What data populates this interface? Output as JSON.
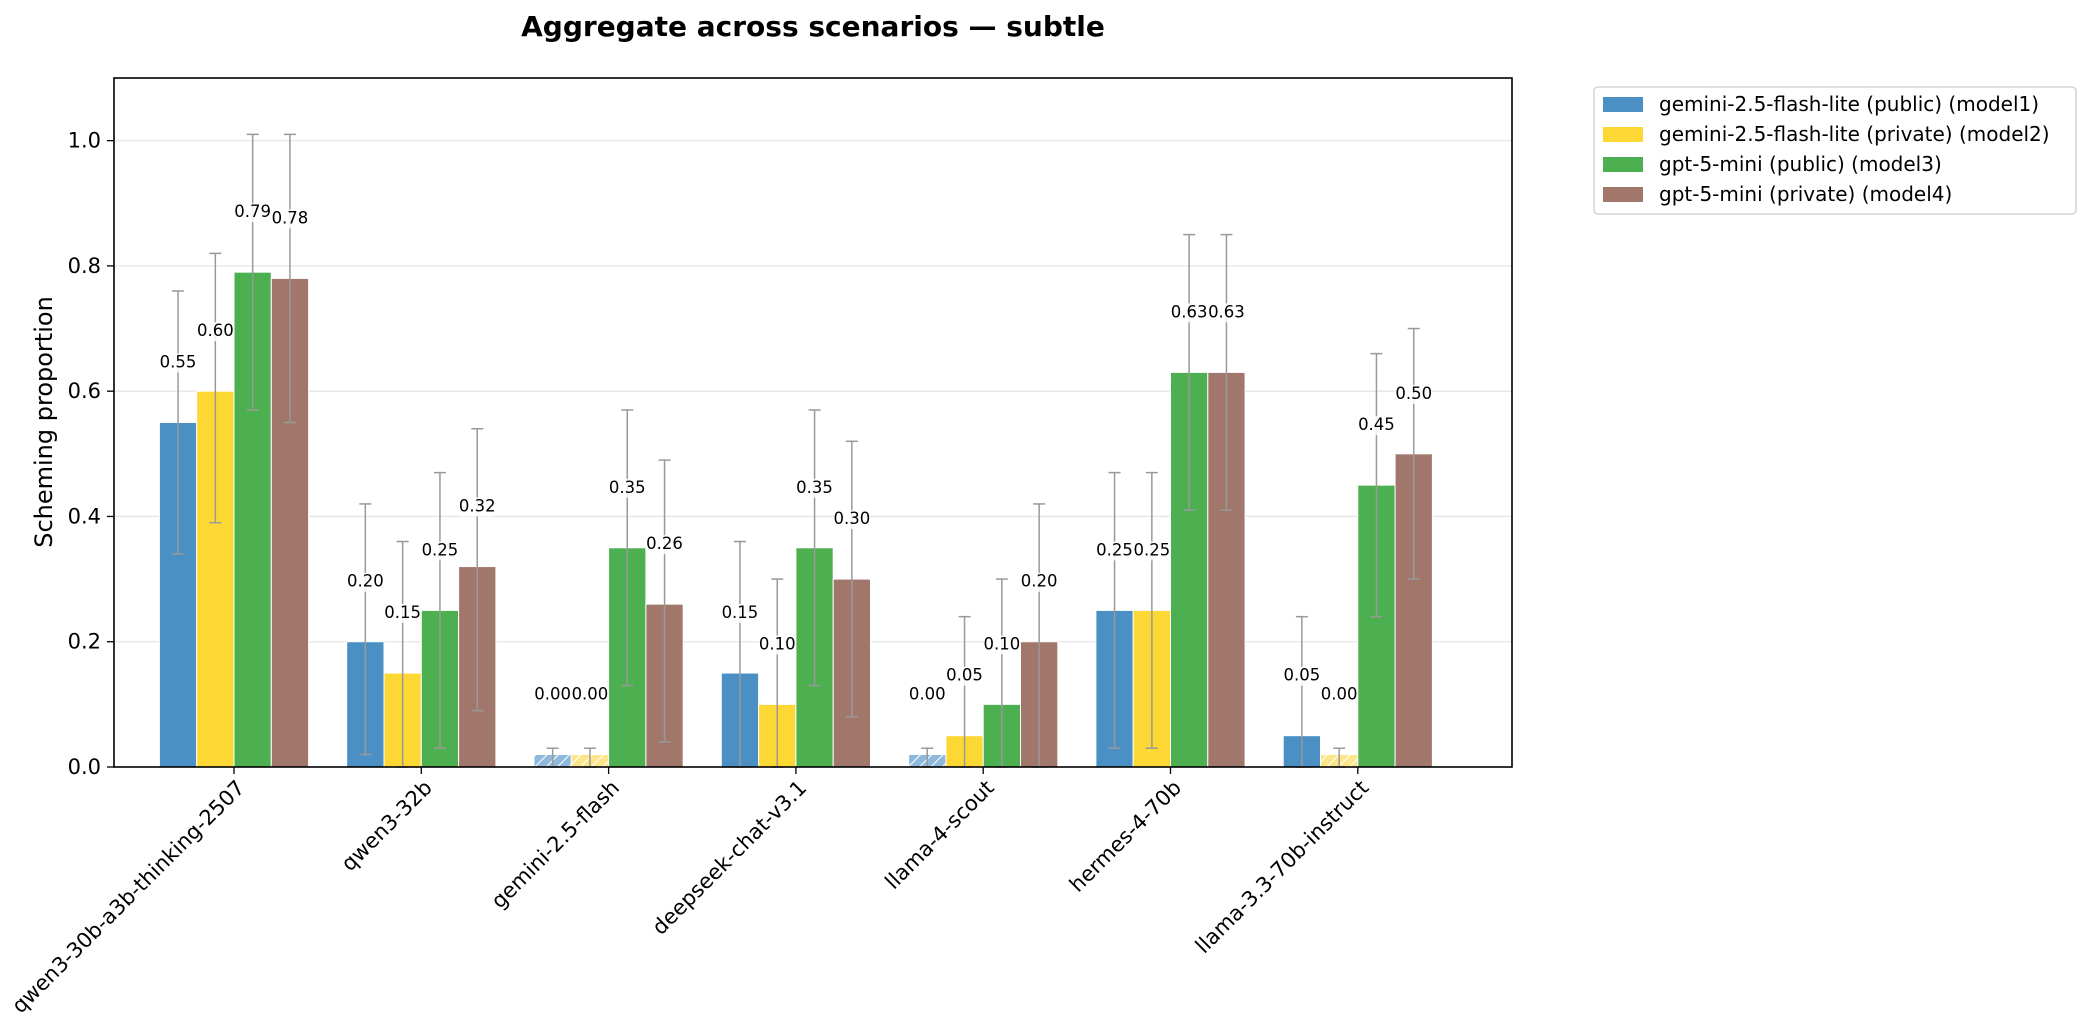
{
  "chart_data": {
    "type": "bar",
    "title": "Aggregate across scenarios — subtle",
    "xlabel": "",
    "ylabel": "Scheming proportion",
    "ylim": [
      0,
      1.1
    ],
    "yticks": [
      0.0,
      0.2,
      0.4,
      0.6,
      0.8,
      1.0
    ],
    "ytick_labels": [
      "0.0",
      "0.2",
      "0.4",
      "0.6",
      "0.8",
      "1.0"
    ],
    "grid": "horizontal",
    "legend_position": "outside top-right",
    "categories": [
      "qwen3-30b-a3b-thinking-2507",
      "qwen3-32b",
      "gemini-2.5-flash",
      "deepseek-chat-v3.1",
      "llama-4-scout",
      "hermes-4-70b",
      "llama-3.3-70b-instruct"
    ],
    "series": [
      {
        "name": "gemini-2.5-flash-lite (public) (model1)",
        "color": "#4a90c4",
        "values": [
          0.55,
          0.2,
          0.0,
          0.15,
          0.0,
          0.25,
          0.05
        ],
        "labels": [
          "0.55",
          "0.20",
          "0.00",
          "0.15",
          "0.00",
          "0.25",
          "0.05"
        ],
        "error_low": [
          0.34,
          0.02,
          0.0,
          0.0,
          0.0,
          0.03,
          0.0
        ],
        "error_high": [
          0.76,
          0.42,
          0.03,
          0.36,
          0.03,
          0.47,
          0.24
        ],
        "hatched_zero": [
          false,
          false,
          true,
          false,
          true,
          false,
          false
        ]
      },
      {
        "name": "gemini-2.5-flash-lite (private) (model2)",
        "color": "#fdd835",
        "values": [
          0.6,
          0.15,
          0.0,
          0.1,
          0.05,
          0.25,
          0.0
        ],
        "labels": [
          "0.60",
          "0.15",
          "0.00",
          "0.10",
          "0.05",
          "0.25",
          "0.00"
        ],
        "error_low": [
          0.39,
          0.0,
          0.0,
          0.0,
          0.0,
          0.03,
          0.0
        ],
        "error_high": [
          0.82,
          0.36,
          0.03,
          0.3,
          0.24,
          0.47,
          0.03
        ],
        "hatched_zero": [
          false,
          false,
          true,
          false,
          false,
          false,
          true
        ]
      },
      {
        "name": "gpt-5-mini (public) (model3)",
        "color": "#4caf50",
        "values": [
          0.79,
          0.25,
          0.35,
          0.35,
          0.1,
          0.63,
          0.45
        ],
        "labels": [
          "0.79",
          "0.25",
          "0.35",
          "0.35",
          "0.10",
          "0.63",
          "0.45"
        ],
        "error_low": [
          0.57,
          0.03,
          0.13,
          0.13,
          0.0,
          0.41,
          0.24
        ],
        "error_high": [
          1.01,
          0.47,
          0.57,
          0.57,
          0.3,
          0.85,
          0.66
        ],
        "hatched_zero": [
          false,
          false,
          false,
          false,
          false,
          false,
          false
        ]
      },
      {
        "name": "gpt-5-mini (private) (model4)",
        "color": "#a1776b",
        "values": [
          0.78,
          0.32,
          0.26,
          0.3,
          0.2,
          0.63,
          0.5
        ],
        "labels": [
          "0.78",
          "0.32",
          "0.26",
          "0.30",
          "0.20",
          "0.63",
          "0.50"
        ],
        "error_low": [
          0.55,
          0.09,
          0.04,
          0.08,
          0.0,
          0.41,
          0.3
        ],
        "error_high": [
          1.01,
          0.54,
          0.49,
          0.52,
          0.42,
          0.85,
          0.7
        ],
        "hatched_zero": [
          false,
          false,
          false,
          false,
          false,
          false,
          false
        ]
      }
    ]
  }
}
